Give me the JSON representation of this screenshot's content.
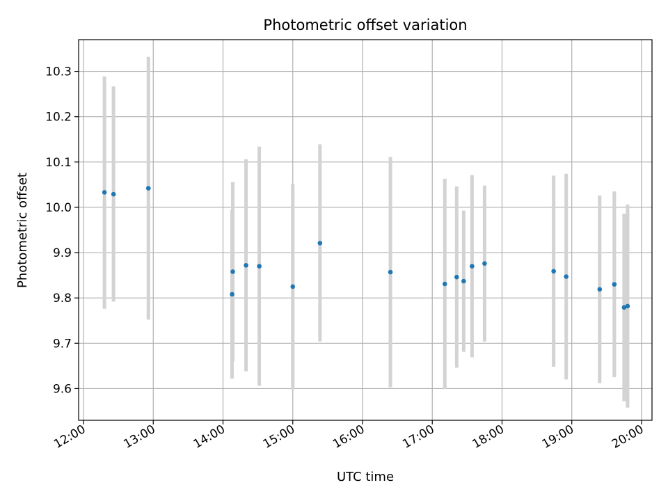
{
  "chart_data": {
    "type": "scatter",
    "title": "Photometric offset variation",
    "xlabel": "UTC time",
    "ylabel": "Photometric offset",
    "x_unit": "hours (UTC)",
    "xlim": [
      11.93,
      20.15
    ],
    "ylim": [
      9.53,
      10.37
    ],
    "grid": true,
    "x_ticks": [
      {
        "value": 12,
        "label": "12:00"
      },
      {
        "value": 13,
        "label": "13:00"
      },
      {
        "value": 14,
        "label": "14:00"
      },
      {
        "value": 15,
        "label": "15:00"
      },
      {
        "value": 16,
        "label": "16:00"
      },
      {
        "value": 17,
        "label": "17:00"
      },
      {
        "value": 18,
        "label": "18:00"
      },
      {
        "value": 19,
        "label": "19:00"
      },
      {
        "value": 20,
        "label": "20:00"
      }
    ],
    "y_ticks": [
      {
        "value": 9.6,
        "label": "9.6"
      },
      {
        "value": 9.7,
        "label": "9.7"
      },
      {
        "value": 9.8,
        "label": "9.8"
      },
      {
        "value": 9.9,
        "label": "9.9"
      },
      {
        "value": 10.0,
        "label": "10.0"
      },
      {
        "value": 10.1,
        "label": "10.1"
      },
      {
        "value": 10.2,
        "label": "10.2"
      },
      {
        "value": 10.3,
        "label": "10.3"
      }
    ],
    "point_color": "#1f77b4",
    "errorbar_color": "#d3d3d3",
    "points": [
      {
        "x": 12.3,
        "y": 10.033,
        "ylow": 9.776,
        "yhigh": 10.289
      },
      {
        "x": 12.43,
        "y": 10.029,
        "ylow": 9.792,
        "yhigh": 10.267
      },
      {
        "x": 12.93,
        "y": 10.042,
        "ylow": 9.752,
        "yhigh": 10.332
      },
      {
        "x": 14.13,
        "y": 9.808,
        "ylow": 9.622,
        "yhigh": 9.994
      },
      {
        "x": 14.14,
        "y": 9.858,
        "ylow": 9.66,
        "yhigh": 10.056
      },
      {
        "x": 14.33,
        "y": 9.872,
        "ylow": 9.638,
        "yhigh": 10.106
      },
      {
        "x": 14.52,
        "y": 9.87,
        "ylow": 9.606,
        "yhigh": 10.134
      },
      {
        "x": 15.0,
        "y": 9.825,
        "ylow": 9.598,
        "yhigh": 10.052
      },
      {
        "x": 15.39,
        "y": 9.921,
        "ylow": 9.704,
        "yhigh": 10.139
      },
      {
        "x": 16.4,
        "y": 9.857,
        "ylow": 9.603,
        "yhigh": 10.111
      },
      {
        "x": 17.18,
        "y": 9.831,
        "ylow": 9.599,
        "yhigh": 10.063
      },
      {
        "x": 17.35,
        "y": 9.846,
        "ylow": 9.646,
        "yhigh": 10.046
      },
      {
        "x": 17.45,
        "y": 9.837,
        "ylow": 9.681,
        "yhigh": 9.993
      },
      {
        "x": 17.57,
        "y": 9.87,
        "ylow": 9.669,
        "yhigh": 10.071
      },
      {
        "x": 17.75,
        "y": 9.876,
        "ylow": 9.704,
        "yhigh": 10.048
      },
      {
        "x": 18.74,
        "y": 9.859,
        "ylow": 9.648,
        "yhigh": 10.07
      },
      {
        "x": 18.92,
        "y": 9.847,
        "ylow": 9.62,
        "yhigh": 10.074
      },
      {
        "x": 19.4,
        "y": 9.819,
        "ylow": 9.612,
        "yhigh": 10.026
      },
      {
        "x": 19.61,
        "y": 9.83,
        "ylow": 9.625,
        "yhigh": 10.035
      },
      {
        "x": 19.75,
        "y": 9.779,
        "ylow": 9.572,
        "yhigh": 9.986
      },
      {
        "x": 19.8,
        "y": 9.782,
        "ylow": 9.558,
        "yhigh": 10.006
      }
    ]
  }
}
